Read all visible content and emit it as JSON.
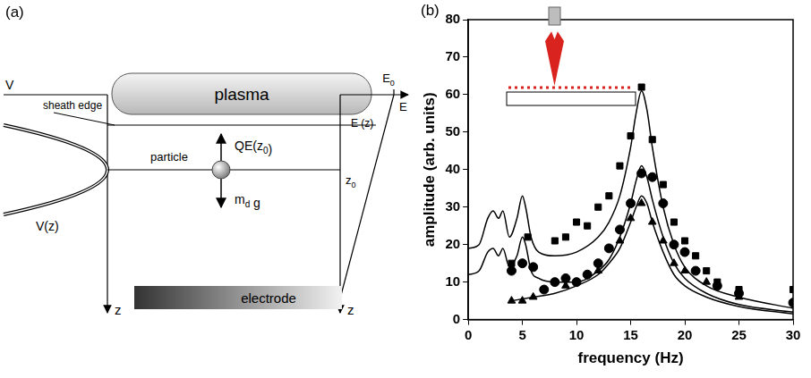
{
  "panel_letters": [
    "(a)",
    "(b)"
  ],
  "diagram": {
    "plasma": "plasma",
    "sheath_edge": "sheath edge",
    "potential_axis": "V",
    "potential_curve": "V(z)",
    "z_axis_left": "z",
    "z_axis_right": "z",
    "particle": "particle",
    "force_up": [
      "QE(z",
      {
        "sub": "0"
      },
      ")"
    ],
    "force_down": [
      "m",
      {
        "sub": "d"
      },
      " g"
    ],
    "field_axis": "E",
    "field_max": [
      "E",
      {
        "sub": "0"
      }
    ],
    "field_curve": "E (z)",
    "height": [
      "z",
      {
        "sub": "0"
      }
    ],
    "electrode": "electrode"
  },
  "chart_data": {
    "type": "scatter",
    "x_label": "frequency (Hz)",
    "y_label": "amplitude (arb. units)",
    "xlim": [
      0,
      30
    ],
    "xticks": [
      0,
      5,
      10,
      15,
      20,
      25,
      30
    ],
    "ylim": [
      0,
      80
    ],
    "yticks": [
      0,
      10,
      20,
      30,
      40,
      50,
      60,
      70,
      80
    ],
    "grid": false,
    "series": [
      {
        "type": "line",
        "color": "#000000",
        "line_style": "solid",
        "x": [
          0,
          1,
          1.8,
          2.3,
          2.8,
          3.2,
          3.8,
          4.5,
          5,
          5.3,
          5.8,
          6.5,
          8,
          10,
          12,
          13,
          14,
          15,
          15.5,
          16,
          16.5,
          17,
          18,
          19,
          20,
          22,
          25,
          30
        ],
        "values": [
          19,
          20,
          27,
          29,
          27,
          29,
          22,
          27,
          33,
          30,
          22,
          18,
          17,
          18,
          22,
          26,
          33,
          46,
          55,
          61,
          56,
          46,
          30,
          20,
          14,
          9,
          6,
          3
        ]
      },
      {
        "type": "line",
        "color": "#000000",
        "line_style": "solid",
        "x": [
          0,
          1,
          1.8,
          2.3,
          2.8,
          3.2,
          3.8,
          4.5,
          5,
          5.3,
          5.8,
          6.5,
          8,
          10,
          12,
          13,
          14,
          15,
          15.5,
          16,
          16.5,
          17,
          18,
          19,
          20,
          22,
          25,
          30
        ],
        "values": [
          12,
          13,
          18,
          19,
          17,
          19,
          14,
          17,
          22,
          20,
          13,
          11,
          10,
          10,
          13,
          16,
          22,
          31,
          37,
          41,
          38,
          32,
          22,
          15,
          11,
          7,
          4,
          2
        ]
      },
      {
        "type": "line",
        "color": "#000000",
        "line_style": "solid",
        "x": [
          4,
          6,
          8,
          10,
          12,
          13,
          14,
          15,
          15.5,
          16,
          16.5,
          17,
          18,
          19,
          20,
          22,
          25,
          30
        ],
        "values": [
          5,
          6,
          7,
          9,
          12,
          15,
          19,
          26,
          30,
          33,
          31,
          26,
          18,
          12,
          9,
          6,
          3.5,
          1.5
        ]
      },
      {
        "type": "scatter",
        "color": "#000000",
        "marker": "square",
        "x": [
          4,
          5.5,
          8,
          9,
          10,
          11,
          12,
          13,
          14,
          15,
          16,
          17,
          18,
          19,
          20,
          21,
          22,
          23,
          25,
          30
        ],
        "values": [
          15,
          22,
          21,
          22,
          26,
          25,
          30,
          33,
          41,
          49,
          62,
          48,
          36,
          26,
          21,
          17,
          13,
          10,
          8,
          8
        ]
      },
      {
        "type": "scatter",
        "color": "#000000",
        "marker": "circle",
        "x": [
          4,
          5,
          6,
          7,
          8,
          9,
          10,
          11,
          12,
          13,
          14,
          15,
          16,
          17,
          18,
          19,
          20,
          21,
          23,
          25,
          30
        ],
        "values": [
          13,
          15,
          14,
          8,
          10,
          11,
          10,
          12,
          15,
          19,
          24,
          31,
          39,
          38,
          31,
          20,
          18,
          13,
          9,
          7,
          4.5
        ]
      },
      {
        "type": "scatter",
        "color": "#000000",
        "marker": "triangle",
        "x": [
          4,
          5,
          6,
          9,
          12,
          14,
          15,
          16,
          17,
          18,
          19,
          20,
          22,
          25
        ],
        "values": [
          5,
          5,
          6,
          9,
          13,
          21,
          27,
          31,
          26,
          21,
          15,
          13,
          10,
          6
        ]
      }
    ]
  }
}
